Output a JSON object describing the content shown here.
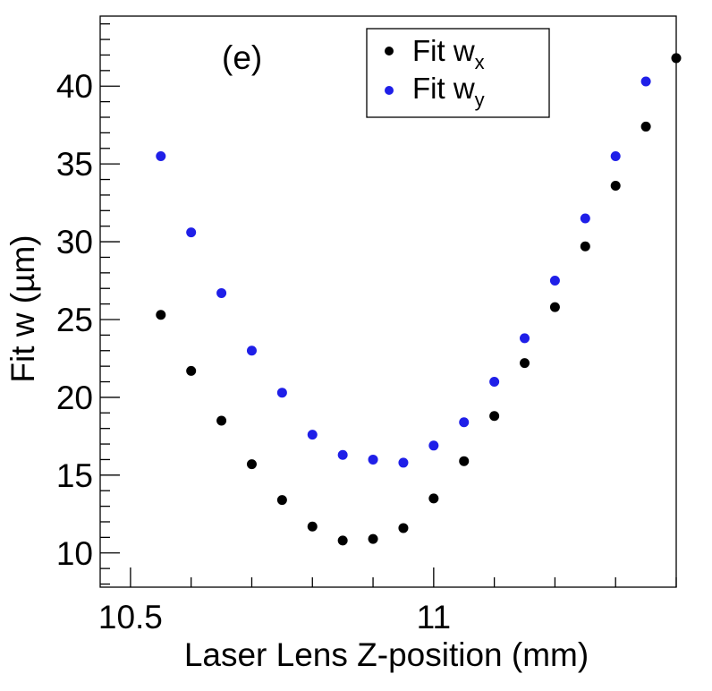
{
  "chart_data": {
    "type": "scatter",
    "panel_label": "(e)",
    "xlabel": "Laser Lens Z-position (mm)",
    "ylabel": "Fit w (µm)",
    "xlim": [
      10.45,
      11.4
    ],
    "ylim": [
      7.8,
      44.5
    ],
    "x_ticks": [
      {
        "value": 10.5,
        "label": "10.5"
      },
      {
        "value": 11.0,
        "label": "11"
      }
    ],
    "y_ticks": [
      {
        "value": 10,
        "label": "10"
      },
      {
        "value": 15,
        "label": "15"
      },
      {
        "value": 20,
        "label": "20"
      },
      {
        "value": 25,
        "label": "25"
      },
      {
        "value": 30,
        "label": "30"
      },
      {
        "value": 35,
        "label": "35"
      },
      {
        "value": 40,
        "label": "40"
      }
    ],
    "legend_position": "top-center",
    "series": [
      {
        "name_main": "Fit w",
        "name_sub": "x",
        "color": "#000000",
        "x": [
          10.55,
          10.6,
          10.65,
          10.7,
          10.75,
          10.8,
          10.85,
          10.9,
          10.95,
          11.0,
          11.05,
          11.1,
          11.15,
          11.2,
          11.25,
          11.3,
          11.35,
          11.4
        ],
        "y": [
          25.3,
          21.7,
          18.5,
          15.7,
          13.4,
          11.7,
          10.8,
          10.9,
          11.6,
          13.5,
          15.9,
          18.8,
          22.2,
          25.8,
          29.7,
          33.6,
          37.4,
          41.8
        ]
      },
      {
        "name_main": "Fit w",
        "name_sub": "y",
        "color": "#1f1fe8",
        "x": [
          10.55,
          10.6,
          10.65,
          10.7,
          10.75,
          10.8,
          10.85,
          10.9,
          10.95,
          11.0,
          11.05,
          11.1,
          11.15,
          11.2,
          11.25,
          11.3,
          11.35
        ],
        "y": [
          35.5,
          30.6,
          26.7,
          23.0,
          20.3,
          17.6,
          16.3,
          16.0,
          15.8,
          16.9,
          18.4,
          21.0,
          23.8,
          27.5,
          31.5,
          35.5,
          40.3
        ]
      }
    ]
  }
}
